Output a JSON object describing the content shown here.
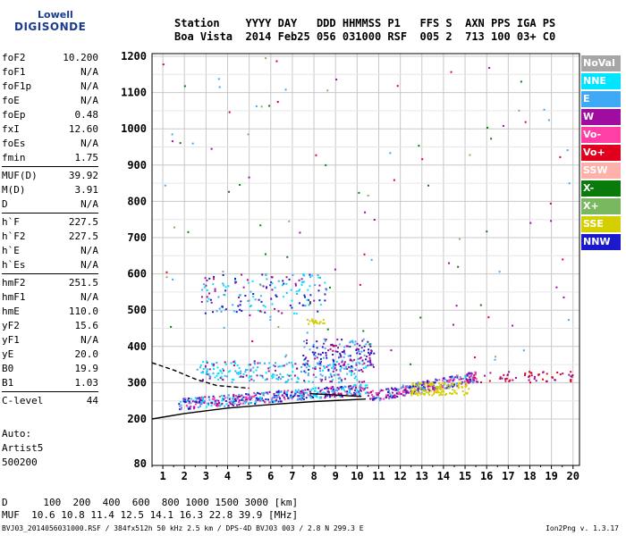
{
  "logo": {
    "line1": "Lowell",
    "line2": "DIGISONDE"
  },
  "header": {
    "row1": "Station    YYYY DAY   DDD HHMMSS P1   FFS S  AXN PPS IGA PS",
    "row2": "Boa Vista  2014 Feb25 056 031000 RSF  005 2  713 100 03+ C0"
  },
  "params": [
    [
      {
        "name": "foF2",
        "value": "10.200"
      },
      {
        "name": "foF1",
        "value": "N/A"
      },
      {
        "name": "foF1p",
        "value": "N/A"
      },
      {
        "name": "foE",
        "value": "N/A"
      },
      {
        "name": "foEp",
        "value": "0.48"
      },
      {
        "name": "fxI",
        "value": "12.60"
      },
      {
        "name": "foEs",
        "value": "N/A"
      },
      {
        "name": "fmin",
        "value": "1.75"
      }
    ],
    [
      {
        "name": "MUF(D)",
        "value": "39.92"
      },
      {
        "name": "M(D)",
        "value": "3.91"
      },
      {
        "name": "D",
        "value": "N/A"
      }
    ],
    [
      {
        "name": "h`F",
        "value": "227.5"
      },
      {
        "name": "h`F2",
        "value": "227.5"
      },
      {
        "name": "h`E",
        "value": "N/A"
      },
      {
        "name": "h`Es",
        "value": "N/A"
      }
    ],
    [
      {
        "name": "hmF2",
        "value": "251.5"
      },
      {
        "name": "hmF1",
        "value": "N/A"
      },
      {
        "name": "hmE",
        "value": "110.0"
      },
      {
        "name": "yF2",
        "value": "15.6"
      },
      {
        "name": "yF1",
        "value": "N/A"
      },
      {
        "name": "yE",
        "value": "20.0"
      },
      {
        "name": "B0",
        "value": "19.9"
      },
      {
        "name": "B1",
        "value": "1.03"
      }
    ],
    [
      {
        "name": "C-level",
        "value": "44"
      }
    ]
  ],
  "artist": {
    "line1": "Auto:",
    "line2": "Artist5",
    "line3": "500200"
  },
  "legend": [
    {
      "label": "NoVal",
      "color": "#a6a6a6"
    },
    {
      "label": "NNE",
      "color": "#00e5ff"
    },
    {
      "label": "E",
      "color": "#3fa9f5"
    },
    {
      "label": "W",
      "color": "#a00ca0"
    },
    {
      "label": "Vo-",
      "color": "#ff3fa6"
    },
    {
      "label": "Vo+",
      "color": "#e0001e"
    },
    {
      "label": "SSW",
      "color": "#ffb0a8"
    },
    {
      "label": "X-",
      "color": "#0a7a0a"
    },
    {
      "label": "X+",
      "color": "#7ab860"
    },
    {
      "label": "SSE",
      "color": "#d4cf00"
    },
    {
      "label": "NNW",
      "color": "#1a1acc"
    }
  ],
  "bottom": {
    "row1": "D      100  200  400  600  800 1000 1500 3000 [km]",
    "row2": "MUF  10.6 10.8 11.4 12.5 14.1 16.3 22.8 39.9 [MHz]"
  },
  "footer": "BVJ03_2014056031000.RSF / 384fx512h 50 kHz 2.5 km / DPS-4D BVJ03 003 / 2.8 N 299.3 E",
  "version": "Ion2Png v. 1.3.17",
  "chart_data": {
    "type": "scatter",
    "title": "",
    "xlabel": "",
    "ylabel": "",
    "xlim": [
      0.5,
      20.3
    ],
    "ylim": [
      80,
      1210
    ],
    "x_ticks": [
      "1",
      "2",
      "3",
      "4",
      "5",
      "6",
      "7",
      "8",
      "9",
      "10",
      "11",
      "12",
      "13",
      "14",
      "15",
      "16",
      "17",
      "18",
      "19",
      "20"
    ],
    "y_ticks": [
      "80",
      "200",
      "300",
      "400",
      "500",
      "600",
      "700",
      "800",
      "900",
      "1000",
      "1100",
      "1200"
    ],
    "grid": true,
    "legend_position": "right",
    "clusters": [
      {
        "name": "F-trace-main",
        "x_range": [
          1.75,
          10.5
        ],
        "y_range": [
          240,
          300
        ],
        "colors": [
          "#a00ca0",
          "#3fa9f5",
          "#00e5ff",
          "#ff3fa6",
          "#1a1acc"
        ],
        "count": 520
      },
      {
        "name": "F-trace-extension",
        "x_range": [
          10.5,
          15.6
        ],
        "y_range": [
          260,
          340
        ],
        "colors": [
          "#a00ca0",
          "#3fa9f5",
          "#1a1acc",
          "#ff3fa6"
        ],
        "count": 300
      },
      {
        "name": "SSE-band",
        "x_range": [
          12.5,
          15.2
        ],
        "y_range": [
          265,
          300
        ],
        "colors": [
          "#d4cf00"
        ],
        "count": 120
      },
      {
        "name": "upper-layer",
        "x_range": [
          2.6,
          10.5
        ],
        "y_range": [
          300,
          360
        ],
        "colors": [
          "#3fa9f5",
          "#00e5ff",
          "#a00ca0"
        ],
        "count": 250
      },
      {
        "name": "spread-F",
        "x_range": [
          7.5,
          10.8
        ],
        "y_range": [
          330,
          420
        ],
        "colors": [
          "#1a1acc",
          "#a00ca0",
          "#3fa9f5"
        ],
        "count": 160
      },
      {
        "name": "multi-hop",
        "x_range": [
          2.8,
          8.6
        ],
        "y_range": [
          490,
          600
        ],
        "colors": [
          "#3fa9f5",
          "#00e5ff",
          "#a00ca0",
          "#1a1acc"
        ],
        "count": 160
      },
      {
        "name": "SSE-patch",
        "x_range": [
          7.7,
          8.5
        ],
        "y_range": [
          460,
          475
        ],
        "colors": [
          "#d4cf00"
        ],
        "count": 20
      },
      {
        "name": "red-tail",
        "x_range": [
          15,
          20
        ],
        "y_range": [
          300,
          330
        ],
        "colors": [
          "#e0001e",
          "#a00ca0"
        ],
        "count": 60
      },
      {
        "name": "scattered-noise",
        "x_range": [
          1,
          20
        ],
        "y_range": [
          350,
          1200
        ],
        "colors": [
          "#0a7a0a",
          "#a00ca0",
          "#e0001e",
          "#7ab860",
          "#3fa9f5"
        ],
        "count": 110
      }
    ],
    "curves": [
      {
        "name": "profile-black",
        "points": [
          [
            0.5,
            200
          ],
          [
            2,
            215
          ],
          [
            4,
            230
          ],
          [
            6,
            240
          ],
          [
            8,
            248
          ],
          [
            10.4,
            255
          ]
        ],
        "color": "#000000"
      },
      {
        "name": "profile-dashed",
        "points": [
          [
            0.5,
            355
          ],
          [
            1.5,
            335
          ],
          [
            2.5,
            310
          ],
          [
            3.5,
            292
          ],
          [
            5,
            285
          ]
        ],
        "color": "#000000",
        "dashed": true
      },
      {
        "name": "marker-line",
        "points": [
          [
            7.8,
            270
          ],
          [
            10.2,
            262
          ]
        ],
        "color": "#000000"
      }
    ]
  }
}
